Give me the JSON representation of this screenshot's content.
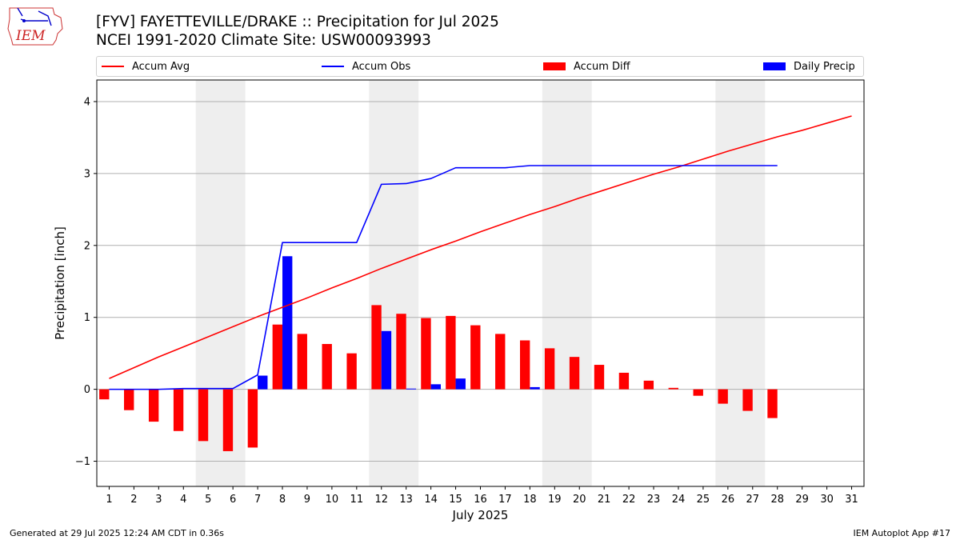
{
  "header": {
    "title": "[FYV] FAYETTEVILLE/DRAKE :: Precipitation for Jul 2025",
    "subtitle": "NCEI 1991-2020 Climate Site: USW00093993",
    "logo_text": "IEM"
  },
  "footer": {
    "left": "Generated at 29 Jul 2025 12:24 AM CDT in 0.36s",
    "right": "IEM Autoplot App #17"
  },
  "colors": {
    "avg": "#ff0000",
    "obs": "#0000ff",
    "diff": "#ff0000",
    "daily": "#0000ff",
    "weekend_shade": "#eeeeee",
    "grid": "#b0b0b0"
  },
  "chart_data": {
    "type": "bar",
    "xlabel": "July 2025",
    "ylabel": "Precipitation [inch]",
    "ylim": [
      -1.35,
      4.3
    ],
    "xlim": [
      0.5,
      31.5
    ],
    "yticks": [
      -1,
      0,
      1,
      2,
      3,
      4
    ],
    "ytick_labels": [
      "−1",
      "0",
      "1",
      "2",
      "3",
      "4"
    ],
    "days": [
      1,
      2,
      3,
      4,
      5,
      6,
      7,
      8,
      9,
      10,
      11,
      12,
      13,
      14,
      15,
      16,
      17,
      18,
      19,
      20,
      21,
      22,
      23,
      24,
      25,
      26,
      27,
      28,
      29,
      30,
      31
    ],
    "shaded_days": [
      [
        5,
        6
      ],
      [
        12,
        13
      ],
      [
        19,
        20
      ],
      [
        26,
        27
      ]
    ],
    "grid": true,
    "legend_position": "top",
    "series": [
      {
        "name": "Accum Avg",
        "kind": "line",
        "values": [
          0.15,
          0.3,
          0.45,
          0.59,
          0.73,
          0.87,
          1.01,
          1.14,
          1.27,
          1.41,
          1.54,
          1.68,
          1.81,
          1.94,
          2.06,
          2.19,
          2.31,
          2.43,
          2.54,
          2.66,
          2.77,
          2.88,
          2.99,
          3.09,
          3.2,
          3.31,
          3.41,
          3.51,
          3.6,
          3.7,
          3.8
        ]
      },
      {
        "name": "Accum Obs",
        "kind": "line",
        "values": [
          0.0,
          0.0,
          0.0,
          0.01,
          0.01,
          0.01,
          0.2,
          2.04,
          2.04,
          2.04,
          2.04,
          2.85,
          2.86,
          2.93,
          3.08,
          3.08,
          3.08,
          3.11,
          3.11,
          3.11,
          3.11,
          3.11,
          3.11,
          3.11,
          3.11,
          3.11,
          3.11,
          3.11
        ]
      },
      {
        "name": "Accum Diff",
        "kind": "bar",
        "values": [
          -0.14,
          -0.29,
          -0.45,
          -0.58,
          -0.72,
          -0.86,
          -0.81,
          0.9,
          0.77,
          0.63,
          0.5,
          1.17,
          1.05,
          0.99,
          1.02,
          0.89,
          0.77,
          0.68,
          0.57,
          0.45,
          0.34,
          0.23,
          0.12,
          0.02,
          -0.09,
          -0.2,
          -0.3,
          -0.4
        ]
      },
      {
        "name": "Daily Precip",
        "kind": "bar",
        "values": [
          0,
          0,
          0,
          0,
          0,
          0,
          0.19,
          1.85,
          0,
          0,
          0,
          0.81,
          0.01,
          0.07,
          0.15,
          0,
          0,
          0.03,
          0,
          0,
          0,
          0,
          0,
          0,
          0,
          0,
          0,
          0
        ]
      }
    ]
  }
}
